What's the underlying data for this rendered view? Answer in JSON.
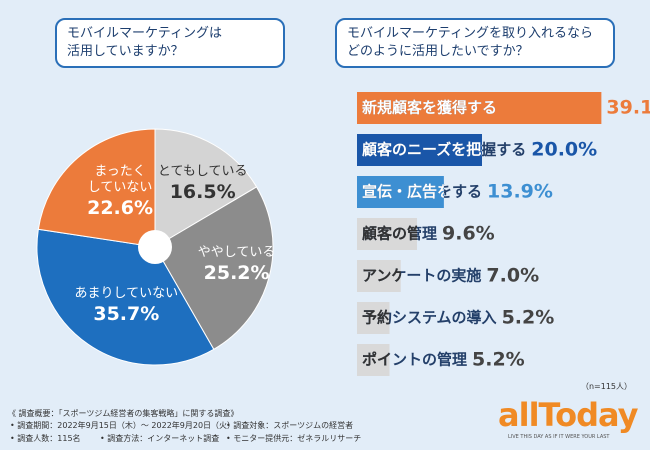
{
  "chart_data": [
    {
      "type": "pie",
      "title": [
        "モバイルマーケティングは",
        "活用していますか？"
      ],
      "categories": [
        "とてもしている",
        "ややしている",
        "あまりしていない",
        "まったく\nしていない"
      ],
      "values": [
        16.5,
        25.2,
        35.7,
        22.6
      ],
      "value_labels": [
        "16.5%",
        "25.2%",
        "35.7%",
        "22.6%"
      ],
      "colors": [
        "#d4d4d4",
        "#8c8c8c",
        "#1e6fbf",
        "#ec7b3b"
      ],
      "label_colors": [
        "#333333",
        "#ffffff",
        "#ffffff",
        "#ffffff"
      ]
    },
    {
      "type": "bar",
      "orientation": "horizontal",
      "title": [
        "モバイルマーケティングを取り入れるなら",
        "どのように活用したいですか？"
      ],
      "categories": [
        "新規顧客を獲得する",
        "顧客のニーズを把握する",
        "宣伝・広告をする",
        "顧客の管理",
        "アンケートの実施",
        "予約システムの導入",
        "ポイントの管理"
      ],
      "values": [
        39.1,
        20.0,
        13.9,
        9.6,
        7.0,
        5.2,
        5.2
      ],
      "value_labels": [
        "39.1%",
        "20.0%",
        "13.9%",
        "9.6%",
        "7.0%",
        "5.2%",
        "5.2%"
      ],
      "colors": [
        "#ec7b3b",
        "#1a56a8",
        "#3d8fd2",
        "#d9d9d9",
        "#d9d9d9",
        "#d9d9d9",
        "#d9d9d9"
      ],
      "text_colors": [
        "#ffffff",
        "#ffffff",
        "#ffffff",
        "#333333",
        "#333333",
        "#333333",
        "#333333"
      ],
      "value_label_colors": [
        "#ec7b3b",
        "#1a56a8",
        "#3d8fd2",
        "#444444",
        "#444444",
        "#444444",
        "#444444"
      ],
      "xlim": [
        0,
        40
      ],
      "note": "（n=115人）"
    }
  ],
  "footer": {
    "survey_title": "《 調査概要：「スポーツジム経営者の集客戦略」に関する調査》",
    "items": [
      "• 調査期間：2022年9月15日（木）～ 2022年9月20日（火）",
      "• 調査対象：スポーツジムの経営者",
      "• 調査人数：115名",
      "• 調査方法：インターネット調査",
      "• モニター提供元：ゼネラルリサーチ"
    ],
    "logo": "allToday",
    "tagline": "LIVE THIS DAY AS IF IT WERE YOUR LAST"
  }
}
